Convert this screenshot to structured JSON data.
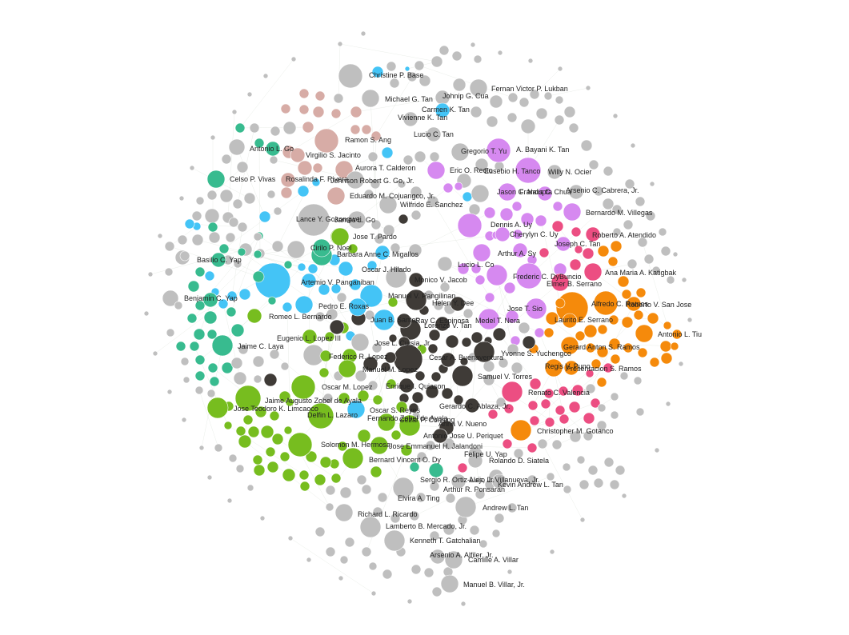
{
  "palette": {
    "gray": "#bfbfbf",
    "rose": "#d7aca6",
    "teal": "#38bb8f",
    "blue": "#44c4f6",
    "green": "#77bd1f",
    "dark": "#3f3b37",
    "violet": "#d689f0",
    "pink": "#ec4e82",
    "orange": "#f58a0b"
  },
  "labels": [
    {
      "text": "Christine P. Base",
      "c": "gray"
    },
    {
      "text": "Fernan Victor P. Lukban",
      "c": "gray"
    },
    {
      "text": "Michael G. Tan",
      "c": "gray"
    },
    {
      "text": "Johnip G. Cua",
      "c": "gray"
    },
    {
      "text": "Carmen K. Tan",
      "c": "blue"
    },
    {
      "text": "Vivienne K. Tan",
      "c": "gray"
    },
    {
      "text": "Lucio C. Tan",
      "c": "gray"
    },
    {
      "text": "Ramon S. Ang",
      "c": "rose"
    },
    {
      "text": "Antonio L. Go",
      "c": "teal"
    },
    {
      "text": "Gregorio T. Yu",
      "c": "gray"
    },
    {
      "text": "A. Bayani K. Tan",
      "c": "violet"
    },
    {
      "text": "Virgilio S. Jacinto",
      "c": "rose"
    },
    {
      "text": "Aurora T. Calderon",
      "c": "rose"
    },
    {
      "text": "Eric O. Recto",
      "c": "violet"
    },
    {
      "text": "Eusebio H. Tanco",
      "c": "violet"
    },
    {
      "text": "Willy N. Ocier",
      "c": "gray"
    },
    {
      "text": "Celso P. Vivas",
      "c": "teal"
    },
    {
      "text": "Rosalinda F. Rivera",
      "c": "rose"
    },
    {
      "text": "Johnson Robert G. Go, Jr.",
      "c": "gray"
    },
    {
      "text": "Jason C. Nalupta",
      "c": "violet"
    },
    {
      "text": "Francis C. Chua",
      "c": "violet"
    },
    {
      "text": "Arsenio C. Cabrera, Jr.",
      "c": "gray"
    },
    {
      "text": "Eduardo M. Cojuangco, Jr.",
      "c": "rose"
    },
    {
      "text": "Wilfrido E. Sanchez",
      "c": "gray"
    },
    {
      "text": "Bernardo M. Villegas",
      "c": "violet"
    },
    {
      "text": "Lance Y. Gokongwei",
      "c": "gray"
    },
    {
      "text": "James L. Go",
      "c": "gray"
    },
    {
      "text": "Dennis A. Uy",
      "c": "violet"
    },
    {
      "text": "Cherylyn C. Uy",
      "c": "violet"
    },
    {
      "text": "Roberto A. Atendido",
      "c": "pink"
    },
    {
      "text": "Jose T. Pardo",
      "c": "green"
    },
    {
      "text": "Joseph C. Tan",
      "c": "violet"
    },
    {
      "text": "Basilio C. Yap",
      "c": "teal"
    },
    {
      "text": "Cirilo P. Noel",
      "c": "teal"
    },
    {
      "text": "Barbara Anne C. Migallos",
      "c": "blue"
    },
    {
      "text": "Arthur A. Sy",
      "c": "violet"
    },
    {
      "text": "Lucio L. Co",
      "c": "gray"
    },
    {
      "text": "Oscar J. Hilado",
      "c": "blue"
    },
    {
      "text": "Ana Maria A. Katigbak",
      "c": "pink"
    },
    {
      "text": "Artemio V. Panganiban",
      "c": "blue"
    },
    {
      "text": "Monico V. Jacob",
      "c": "dark"
    },
    {
      "text": "Frederic C. DyBuncio",
      "c": "violet"
    },
    {
      "text": "Elmer B. Serrano",
      "c": "pink"
    },
    {
      "text": "Benjamin C. Yap",
      "c": "teal"
    },
    {
      "text": "Manuel V. Pangilinan",
      "c": "dark"
    },
    {
      "text": "Helen Y. Dee",
      "c": "dark"
    },
    {
      "text": "Alfredo C. Ramos",
      "c": "orange"
    },
    {
      "text": "Roberto V. San Jose",
      "c": "orange"
    },
    {
      "text": "Pedro E. Roxas",
      "c": "blue"
    },
    {
      "text": "Jose T. Sio",
      "c": "violet"
    },
    {
      "text": "Romeo L. Bernardo",
      "c": "green"
    },
    {
      "text": "Juan B. Santos",
      "c": "blue"
    },
    {
      "text": "Ray C. Espinosa",
      "c": "dark"
    },
    {
      "text": "Medel T. Nera",
      "c": "violet"
    },
    {
      "text": "Laurito E. Serrano",
      "c": "orange"
    },
    {
      "text": "Lorenzo V. Tan",
      "c": "dark"
    },
    {
      "text": "Antonio L. Tiu",
      "c": "orange"
    },
    {
      "text": "Eugenio L. Lopez III",
      "c": "green"
    },
    {
      "text": "Jose L. Cuisia, Jr.",
      "c": "gray"
    },
    {
      "text": "Jaime C. Laya",
      "c": "teal"
    },
    {
      "text": "Gerard Anton S. Ramos",
      "c": "orange"
    },
    {
      "text": "Yvonne S. Yuchengco",
      "c": "dark"
    },
    {
      "text": "Federico R. Lopez",
      "c": "green"
    },
    {
      "text": "Cesar A. Buenaventura",
      "c": "dark"
    },
    {
      "text": "Regis V. Puno",
      "c": "orange"
    },
    {
      "text": "Manuel M. Lopez",
      "c": "green"
    },
    {
      "text": "Presentacion S. Ramos",
      "c": "orange"
    },
    {
      "text": "Samuel V. Torres",
      "c": "dark"
    },
    {
      "text": "Enrique I. Quiason",
      "c": "dark"
    },
    {
      "text": "Oscar M. Lopez",
      "c": "green"
    },
    {
      "text": "Renato C. Valencia",
      "c": "pink"
    },
    {
      "text": "Jaime Augusto Zobel de Ayala",
      "c": "green"
    },
    {
      "text": "Gerardo C. Ablaza, Jr.",
      "c": "dark"
    },
    {
      "text": "Jose Teodoro K. Limcaoco",
      "c": "green"
    },
    {
      "text": "Oscar S. Reyes",
      "c": "blue"
    },
    {
      "text": "Delfin L. Lazaro",
      "c": "green"
    },
    {
      "text": "Fernando Zobel de Ayala",
      "c": "green"
    },
    {
      "text": "Cezar P. Consing",
      "c": "green"
    },
    {
      "text": "Anna V. Nueno",
      "c": "dark"
    },
    {
      "text": "Christopher M. Gotanco",
      "c": "orange"
    },
    {
      "text": "Antonio Jose U. Periquet",
      "c": "dark"
    },
    {
      "text": "Solomon M. Hermosa",
      "c": "green"
    },
    {
      "text": "Jose Emmanuel H. Jalandoni",
      "c": "green"
    },
    {
      "text": "Felipe U. Yap",
      "c": "gray"
    },
    {
      "text": "Bernard Vincent O. Dy",
      "c": "green"
    },
    {
      "text": "Rolando D. Siatela",
      "c": "gray"
    },
    {
      "text": "Sergio R. Ortiz-Luis, Jr.",
      "c": "teal"
    },
    {
      "text": "Alejo L. Villanueva, Jr.",
      "c": "gray"
    },
    {
      "text": "Arthur R. Ponsaran",
      "c": "gray"
    },
    {
      "text": "Kevin Andrew L. Tan",
      "c": "gray"
    },
    {
      "text": "Elvira A. Ting",
      "c": "gray"
    },
    {
      "text": "Andrew L. Tan",
      "c": "gray"
    },
    {
      "text": "Richard L. Ricardo",
      "c": "gray"
    },
    {
      "text": "Lamberto B. Mercado, Jr.",
      "c": "gray"
    },
    {
      "text": "Kenneth T. Gatchalian",
      "c": "gray"
    },
    {
      "text": "Arsenio A. Alfiler, Jr.",
      "c": "gray"
    },
    {
      "text": "Camille A. Villar",
      "c": "gray"
    },
    {
      "text": "Manuel B. Villar, Jr.",
      "c": "gray"
    }
  ]
}
